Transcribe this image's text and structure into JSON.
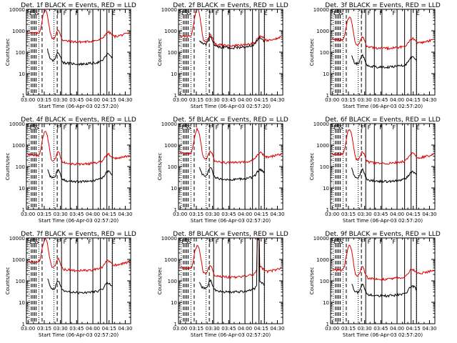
{
  "chart_data": [
    {
      "type": "line",
      "title": "Det. 1f  BLACK = Events, RED = LLD",
      "xlabel": "Start Time (06-Apr-03 02:57:20)",
      "ylabel": "Counts/sec",
      "ylog": true,
      "ylim": [
        1,
        10000
      ],
      "xticks": [
        "03:00",
        "03:15",
        "03:30",
        "03:45",
        "04:00",
        "04:15",
        "04:30"
      ],
      "yticks": [
        "1",
        "10",
        "100",
        "1000",
        "10000"
      ],
      "letters": [
        "E",
        "S",
        "S",
        "F",
        "F",
        "F",
        "F",
        "E"
      ],
      "peak": [
        "03:16",
        8000
      ],
      "bg_events": 28,
      "bg_lld": 300,
      "series": [
        {
          "name": "BLACK = Events",
          "color": "#000000"
        },
        {
          "name": "RED = LLD",
          "color": "#dd0000"
        }
      ]
    },
    {
      "type": "line",
      "title": "Det. 2f  BLACK = Events, RED = LLD",
      "xlabel": "Start Time (06-Apr-03 02:57:20)",
      "ylabel": "Counts/sec",
      "ylog": true,
      "ylim": [
        1,
        10000
      ],
      "xticks": [
        "03:00",
        "03:15",
        "03:30",
        "03:45",
        "04:00",
        "04:15",
        "04:30"
      ],
      "yticks": [
        "1",
        "10",
        "100",
        "1000",
        "10000"
      ],
      "letters": [
        "E",
        "S",
        "S",
        "F",
        "F",
        "F",
        "F",
        "E"
      ],
      "peak": [
        "03:16",
        9000
      ],
      "bg_events": 160,
      "bg_lld": 200,
      "series": [
        {
          "name": "BLACK = Events",
          "color": "#000000"
        },
        {
          "name": "RED = LLD",
          "color": "#dd0000"
        }
      ]
    },
    {
      "type": "line",
      "title": "Det. 3f  BLACK = Events, RED = LLD",
      "xlabel": "Start Time (06-Apr-03 02:57:20)",
      "ylabel": "Counts/sec",
      "ylog": true,
      "ylim": [
        1,
        10000
      ],
      "xticks": [
        "03:00",
        "03:15",
        "03:30",
        "03:45",
        "04:00",
        "04:15",
        "04:30"
      ],
      "yticks": [
        "1",
        "10",
        "100",
        "1000",
        "10000"
      ],
      "letters": [
        "E",
        "S",
        "S",
        "F",
        "F",
        "F",
        "F",
        "E"
      ],
      "peak": [
        "03:16",
        4000
      ],
      "bg_events": 20,
      "bg_lld": 150,
      "series": [
        {
          "name": "BLACK = Events",
          "color": "#000000"
        },
        {
          "name": "RED = LLD",
          "color": "#dd0000"
        }
      ]
    },
    {
      "type": "line",
      "title": "Det. 4f  BLACK = Events, RED = LLD",
      "xlabel": "Start Time (06-Apr-03 02:57:20)",
      "ylabel": "Counts/sec",
      "ylog": true,
      "ylim": [
        1,
        10000
      ],
      "xticks": [
        "03:00",
        "03:15",
        "03:30",
        "03:45",
        "04:00",
        "04:15",
        "04:30"
      ],
      "yticks": [
        "1",
        "10",
        "100",
        "1000",
        "10000"
      ],
      "letters": [
        "E",
        "S",
        "S",
        "F",
        "F",
        "F",
        "F",
        "E"
      ],
      "peak": [
        "03:16",
        4000
      ],
      "bg_events": 20,
      "bg_lld": 130,
      "series": [
        {
          "name": "BLACK = Events",
          "color": "#000000"
        },
        {
          "name": "RED = LLD",
          "color": "#dd0000"
        }
      ]
    },
    {
      "type": "line",
      "title": "Det. 5f  BLACK = Events, RED = LLD",
      "xlabel": "Start Time (06-Apr-03 02:57:20)",
      "ylabel": "Counts/sec",
      "ylog": true,
      "ylim": [
        1,
        10000
      ],
      "xticks": [
        "03:00",
        "03:15",
        "03:30",
        "03:45",
        "04:00",
        "04:15",
        "04:30"
      ],
      "yticks": [
        "1",
        "10",
        "100",
        "1000",
        "10000"
      ],
      "letters": [
        "E",
        "S",
        "S",
        "F",
        "F",
        "F",
        "F",
        "E"
      ],
      "peak": [
        "03:16",
        5000
      ],
      "bg_events": 25,
      "bg_lld": 150,
      "series": [
        {
          "name": "BLACK = Events",
          "color": "#000000"
        },
        {
          "name": "RED = LLD",
          "color": "#dd0000"
        }
      ]
    },
    {
      "type": "line",
      "title": "Det. 6f  BLACK = Events, RED = LLD",
      "xlabel": "Start Time (06-Apr-03 02:57:20)",
      "ylabel": "Counts/sec",
      "ylog": true,
      "ylim": [
        1,
        10000
      ],
      "xticks": [
        "03:00",
        "03:15",
        "03:30",
        "03:45",
        "04:00",
        "04:15",
        "04:30"
      ],
      "yticks": [
        "1",
        "10",
        "100",
        "1000",
        "10000"
      ],
      "letters": [
        "E",
        "S",
        "S",
        "F",
        "F",
        "F",
        "F",
        "E"
      ],
      "peak": [
        "03:16",
        5000
      ],
      "bg_events": 20,
      "bg_lld": 140,
      "series": [
        {
          "name": "BLACK = Events",
          "color": "#000000"
        },
        {
          "name": "RED = LLD",
          "color": "#dd0000"
        }
      ]
    },
    {
      "type": "line",
      "title": "Det. 7f  BLACK = Events, RED = LLD",
      "xlabel": "Start Time (06-Apr-03 02:57:20)",
      "ylabel": "Counts/sec",
      "ylog": true,
      "ylim": [
        1,
        10000
      ],
      "xticks": [
        "03:00",
        "03:15",
        "03:30",
        "03:45",
        "04:00",
        "04:15",
        "04:30"
      ],
      "yticks": [
        "1",
        "10",
        "100",
        "1000",
        "10000"
      ],
      "letters": [
        "E",
        "S",
        "S",
        "F",
        "F",
        "F",
        "F",
        "E"
      ],
      "peak": [
        "03:16",
        8000
      ],
      "bg_events": 28,
      "bg_lld": 300,
      "series": [
        {
          "name": "BLACK = Events",
          "color": "#000000"
        },
        {
          "name": "RED = LLD",
          "color": "#dd0000"
        }
      ]
    },
    {
      "type": "line",
      "title": "Det. 8f  BLACK = Events, RED = LLD",
      "xlabel": "Start Time (06-Apr-03 02:57:20)",
      "ylabel": "Counts/sec",
      "ylog": true,
      "ylim": [
        1,
        10000
      ],
      "xticks": [
        "03:00",
        "03:15",
        "03:30",
        "03:45",
        "04:00",
        "04:15",
        "04:30"
      ],
      "yticks": [
        "1",
        "10",
        "100",
        "1000",
        "10000"
      ],
      "letters": [
        "E",
        "S",
        "S",
        "F",
        "F",
        "F",
        "F",
        "E"
      ],
      "peak": [
        "03:16",
        4000
      ],
      "bg_events": 30,
      "bg_lld": 150,
      "spike": [
        "04:12",
        9000
      ],
      "series": [
        {
          "name": "BLACK = Events",
          "color": "#000000"
        },
        {
          "name": "RED = LLD",
          "color": "#dd0000"
        }
      ]
    },
    {
      "type": "line",
      "title": "Det. 9f  BLACK = Events, RED = LLD",
      "xlabel": "Start Time (06-Apr-03 02:57:20)",
      "ylabel": "Counts/sec",
      "ylog": true,
      "ylim": [
        1,
        10000
      ],
      "xticks": [
        "03:00",
        "03:15",
        "03:30",
        "03:45",
        "04:00",
        "04:15",
        "04:30"
      ],
      "yticks": [
        "1",
        "10",
        "100",
        "1000",
        "10000"
      ],
      "letters": [
        "E",
        "S",
        "S",
        "F",
        "F",
        "F",
        "F",
        "E"
      ],
      "peak": [
        "03:16",
        4000
      ],
      "bg_events": 20,
      "bg_lld": 120,
      "series": [
        {
          "name": "BLACK = Events",
          "color": "#000000"
        },
        {
          "name": "RED = LLD",
          "color": "#dd0000"
        }
      ]
    }
  ]
}
